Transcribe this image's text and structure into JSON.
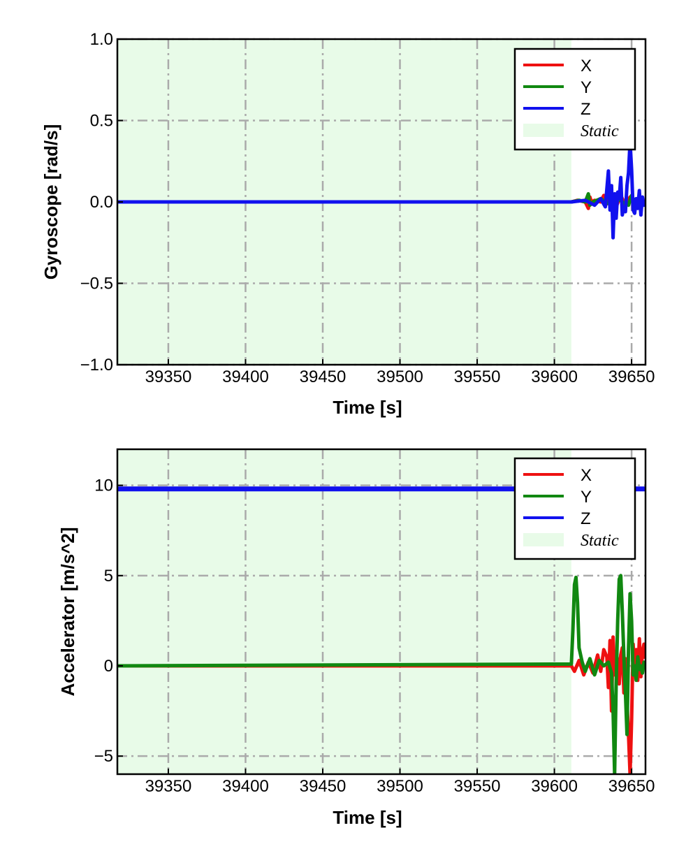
{
  "chart_data": [
    {
      "type": "line",
      "xlabel": "Time [s]",
      "ylabel": "Gyroscope [rad/s]",
      "xlim": [
        39317,
        39659
      ],
      "ylim": [
        -1.0,
        1.0
      ],
      "xticks": [
        39350,
        39400,
        39450,
        39500,
        39550,
        39600,
        39650
      ],
      "xtick_labels": [
        "39350",
        "39400",
        "39450",
        "39500",
        "39550",
        "39600",
        "39650"
      ],
      "yticks": [
        -1.0,
        -0.5,
        0.0,
        0.5,
        1.0
      ],
      "ytick_labels": [
        "−1.0",
        "−0.5",
        "0.0",
        "0.5",
        "1.0"
      ],
      "grid": true,
      "legend_position": "top-right",
      "static_span": [
        39317,
        39611
      ],
      "legend": [
        {
          "label": "X",
          "kind": "line",
          "color": "#ee1111"
        },
        {
          "label": "Y",
          "kind": "line",
          "color": "#118811"
        },
        {
          "label": "Z",
          "kind": "line",
          "color": "#1111ee"
        },
        {
          "label": "Static",
          "kind": "patch",
          "color": "#e8fbe8"
        }
      ],
      "series": [
        {
          "name": "X",
          "color": "#ee1111",
          "x": [
            39317,
            39611,
            39615,
            39620,
            39622,
            39623,
            39624,
            39626,
            39630,
            39632,
            39633,
            39635,
            39637,
            39640,
            39643,
            39646,
            39649,
            39652,
            39655,
            39659
          ],
          "y": [
            0.0,
            0.0,
            0.01,
            0.0,
            -0.04,
            0.03,
            0.0,
            0.01,
            0.0,
            0.04,
            -0.02,
            0.0,
            0.05,
            -0.03,
            0.04,
            -0.02,
            0.03,
            0.0,
            0.02,
            0.0
          ]
        },
        {
          "name": "Y",
          "color": "#118811",
          "x": [
            39317,
            39611,
            39616,
            39620,
            39622,
            39623,
            39625,
            39630,
            39635,
            39640,
            39644,
            39648,
            39650,
            39652,
            39655,
            39659
          ],
          "y": [
            0.0,
            0.0,
            0.01,
            0.0,
            0.05,
            -0.02,
            0.0,
            0.02,
            -0.01,
            0.03,
            0.0,
            -0.02,
            0.04,
            0.0,
            0.01,
            0.0
          ]
        },
        {
          "name": "Z",
          "color": "#1111ee",
          "x": [
            39317,
            39611,
            39620,
            39626,
            39630,
            39633,
            39635,
            39636,
            39637,
            39638,
            39639,
            39640,
            39641,
            39642,
            39643,
            39644,
            39645,
            39646,
            39647,
            39648,
            39649,
            39650,
            39651,
            39652,
            39653,
            39654,
            39655,
            39656,
            39657,
            39658,
            39659
          ],
          "y": [
            0.0,
            0.0,
            0.01,
            -0.02,
            0.02,
            -0.03,
            0.19,
            -0.05,
            0.1,
            -0.22,
            0.05,
            -0.1,
            0.06,
            0.02,
            0.15,
            -0.08,
            -0.03,
            -0.06,
            0.1,
            0.18,
            0.37,
            0.2,
            -0.05,
            -0.07,
            0.02,
            -0.04,
            0.07,
            -0.08,
            0.03,
            -0.02,
            0.0
          ]
        }
      ]
    },
    {
      "type": "line",
      "xlabel": "Time [s]",
      "ylabel": "Accelerator [m/s^2]",
      "xlim": [
        39317,
        39659
      ],
      "ylim": [
        -6.0,
        12.0
      ],
      "xticks": [
        39350,
        39400,
        39450,
        39500,
        39550,
        39600,
        39650
      ],
      "xtick_labels": [
        "39350",
        "39400",
        "39450",
        "39500",
        "39550",
        "39600",
        "39650"
      ],
      "yticks": [
        -5,
        0,
        5,
        10
      ],
      "ytick_labels": [
        "−5",
        "0",
        "5",
        "10"
      ],
      "grid": true,
      "legend_position": "top-right",
      "static_span": [
        39317,
        39611
      ],
      "legend": [
        {
          "label": "X",
          "kind": "line",
          "color": "#ee1111"
        },
        {
          "label": "Y",
          "kind": "line",
          "color": "#118811"
        },
        {
          "label": "Z",
          "kind": "line",
          "color": "#1111ee"
        },
        {
          "label": "Static",
          "kind": "patch",
          "color": "#e8fbe8"
        }
      ],
      "series": [
        {
          "name": "Z",
          "color": "#1111ee",
          "x": [
            39317,
            39659
          ],
          "y": [
            9.8,
            9.8
          ]
        },
        {
          "name": "X",
          "color": "#ee1111",
          "x": [
            39317,
            39611,
            39613,
            39616,
            39619,
            39622,
            39625,
            39628,
            39630,
            39632,
            39634,
            39635,
            39636,
            39637,
            39638,
            39639,
            39640,
            39641,
            39642,
            39643,
            39644,
            39645,
            39646,
            39647,
            39648,
            39649,
            39650,
            39651,
            39652,
            39653,
            39654,
            39655,
            39656,
            39657,
            39658,
            39659
          ],
          "y": [
            0.0,
            0.0,
            -0.3,
            0.3,
            -0.5,
            0.2,
            -0.4,
            0.6,
            -0.3,
            0.9,
            0.5,
            -1.2,
            1.4,
            -2.5,
            1.6,
            -0.5,
            0.8,
            0.2,
            -1.0,
            0.6,
            1.0,
            -1.5,
            0.4,
            -2.0,
            -3.8,
            -6.0,
            -3.0,
            1.2,
            -0.5,
            0.9,
            -0.8,
            1.5,
            -0.6,
            0.8,
            1.2,
            0.4
          ]
        },
        {
          "name": "Y",
          "color": "#118811",
          "x": [
            39317,
            39611,
            39612,
            39613,
            39614,
            39615,
            39616,
            39618,
            39620,
            39623,
            39626,
            39629,
            39632,
            39635,
            39637,
            39638,
            39639,
            39640,
            39641,
            39642,
            39643,
            39644,
            39645,
            39646,
            39647,
            39648,
            39649,
            39650,
            39651,
            39652,
            39653,
            39654,
            39655,
            39656,
            39657,
            39658,
            39659
          ],
          "y": [
            0.0,
            0.1,
            2.0,
            4.5,
            4.9,
            3.5,
            1.0,
            0.2,
            -0.3,
            0.4,
            -0.5,
            0.3,
            0.0,
            0.2,
            -0.4,
            -2.5,
            -6.0,
            -1.0,
            2.5,
            4.8,
            5.0,
            3.0,
            0.5,
            -1.5,
            -3.8,
            1.0,
            4.0,
            2.5,
            -0.5,
            0.0,
            -0.8,
            0.5,
            -0.2,
            0.0,
            -0.4,
            0.2,
            0.0
          ]
        }
      ]
    }
  ]
}
